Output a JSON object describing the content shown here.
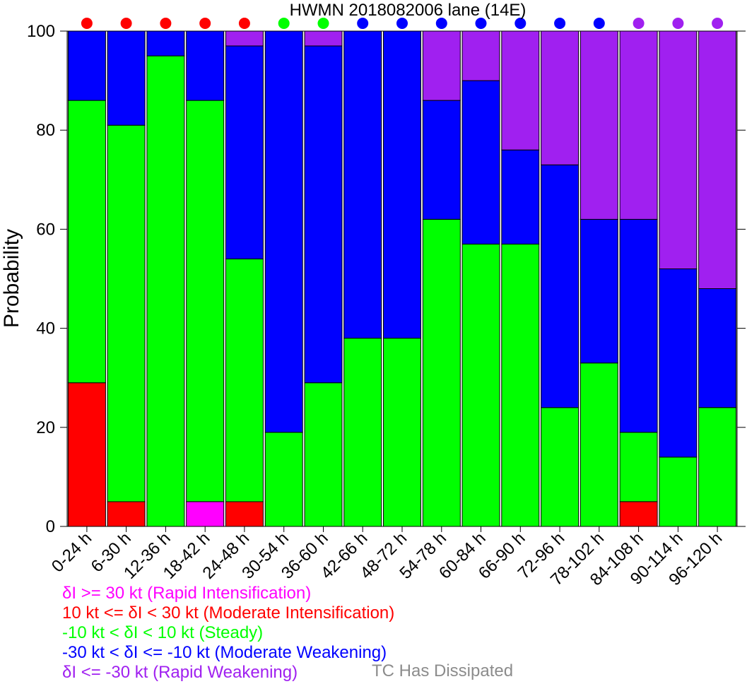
{
  "chart_data": {
    "type": "bar",
    "stacked": true,
    "title": "HWMN 2018082006 lane (14E)",
    "ylabel": "Probability",
    "xlabel": "",
    "ylim": [
      0,
      100
    ],
    "yticks": [
      "0",
      "20",
      "40",
      "60",
      "80",
      "100"
    ],
    "categories": [
      "0-24 h",
      "6-30 h",
      "12-36 h",
      "18-42 h",
      "24-48 h",
      "30-54 h",
      "36-60 h",
      "42-66 h",
      "48-72 h",
      "54-78 h",
      "60-84 h",
      "66-90 h",
      "72-96 h",
      "78-102 h",
      "84-108 h",
      "90-114 h",
      "96-120 h"
    ],
    "series": [
      {
        "name": "δI >= 30 kt (Rapid Intensification)",
        "color": "#ff00ff",
        "values": [
          0,
          0,
          0,
          5,
          0,
          0,
          0,
          0,
          0,
          0,
          0,
          0,
          0,
          0,
          0,
          0,
          0
        ]
      },
      {
        "name": "10 kt <= δI < 30 kt (Moderate Intensification)",
        "color": "#ff0000",
        "values": [
          29,
          5,
          0,
          0,
          5,
          0,
          0,
          0,
          0,
          0,
          0,
          0,
          0,
          0,
          5,
          0,
          0
        ]
      },
      {
        "name": "-10 kt < δI < 10 kt (Steady)",
        "color": "#00ff00",
        "values": [
          57,
          76,
          95,
          81,
          49,
          19,
          29,
          38,
          38,
          62,
          57,
          57,
          24,
          33,
          14,
          14,
          24
        ]
      },
      {
        "name": "-30 kt < δI <= -10 kt (Moderate Weakening)",
        "color": "#0000ff",
        "values": [
          14,
          19,
          5,
          14,
          43,
          81,
          68,
          62,
          62,
          24,
          33,
          19,
          49,
          29,
          43,
          38,
          24
        ]
      },
      {
        "name": "δI <= -30 kt (Rapid Weakening)",
        "color": "#a020f0",
        "values": [
          0,
          0,
          0,
          0,
          3,
          0,
          3,
          0,
          0,
          14,
          10,
          24,
          27,
          38,
          38,
          48,
          52
        ]
      }
    ],
    "top_markers": [
      "#ff0000",
      "#ff0000",
      "#ff0000",
      "#ff0000",
      "#ff0000",
      "#00ff00",
      "#00ff00",
      "#0000ff",
      "#0000ff",
      "#0000ff",
      "#0000ff",
      "#0000ff",
      "#0000ff",
      "#0000ff",
      "#a020f0",
      "#a020f0",
      "#a020f0"
    ],
    "dissipated_label": "TC Has Dissipated",
    "dissipated_color": "#8c8c8c"
  }
}
